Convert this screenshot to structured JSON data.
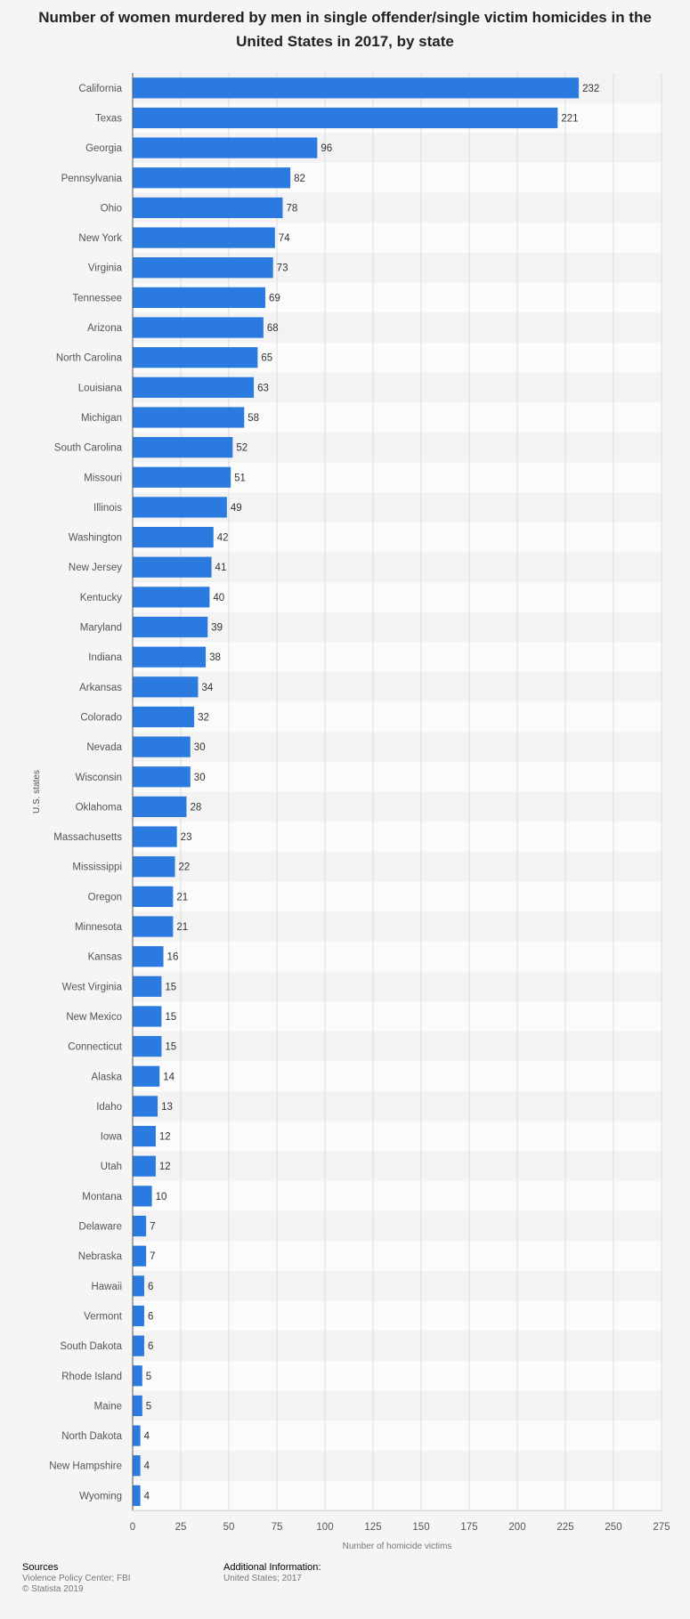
{
  "title": "Number of women murdered by men in single offender/single victim homicides in the United States in 2017, by state",
  "footer": {
    "sources_heading": "Sources",
    "sources_line1": "Violence Policy Center; FBI",
    "sources_line2": "© Statista 2019",
    "additional_heading": "Additional Information:",
    "additional_text": "United States; 2017"
  },
  "chart_data": {
    "type": "bar",
    "orientation": "horizontal",
    "xlabel": "Number of homicide victims",
    "ylabel": "U.S. states",
    "xlim": [
      0,
      275
    ],
    "xticks": [
      0,
      25,
      50,
      75,
      100,
      125,
      150,
      175,
      200,
      225,
      250,
      275
    ],
    "grid": true,
    "bar_color": "#2b7ae0",
    "categories": [
      "California",
      "Texas",
      "Georgia",
      "Pennsylvania",
      "Ohio",
      "New York",
      "Virginia",
      "Tennessee",
      "Arizona",
      "North Carolina",
      "Louisiana",
      "Michigan",
      "South Carolina",
      "Missouri",
      "Illinois",
      "Washington",
      "New Jersey",
      "Kentucky",
      "Maryland",
      "Indiana",
      "Arkansas",
      "Colorado",
      "Nevada",
      "Wisconsin",
      "Oklahoma",
      "Massachusetts",
      "Mississippi",
      "Oregon",
      "Minnesota",
      "Kansas",
      "West Virginia",
      "New Mexico",
      "Connecticut",
      "Alaska",
      "Idaho",
      "Iowa",
      "Utah",
      "Montana",
      "Delaware",
      "Nebraska",
      "Hawaii",
      "Vermont",
      "South Dakota",
      "Rhode Island",
      "Maine",
      "North Dakota",
      "New Hampshire",
      "Wyoming"
    ],
    "values": [
      232,
      221,
      96,
      82,
      78,
      74,
      73,
      69,
      68,
      65,
      63,
      58,
      52,
      51,
      49,
      42,
      41,
      40,
      39,
      38,
      34,
      32,
      30,
      30,
      28,
      23,
      22,
      21,
      21,
      16,
      15,
      15,
      15,
      14,
      13,
      12,
      12,
      10,
      7,
      7,
      6,
      6,
      6,
      5,
      5,
      4,
      4,
      4
    ]
  }
}
